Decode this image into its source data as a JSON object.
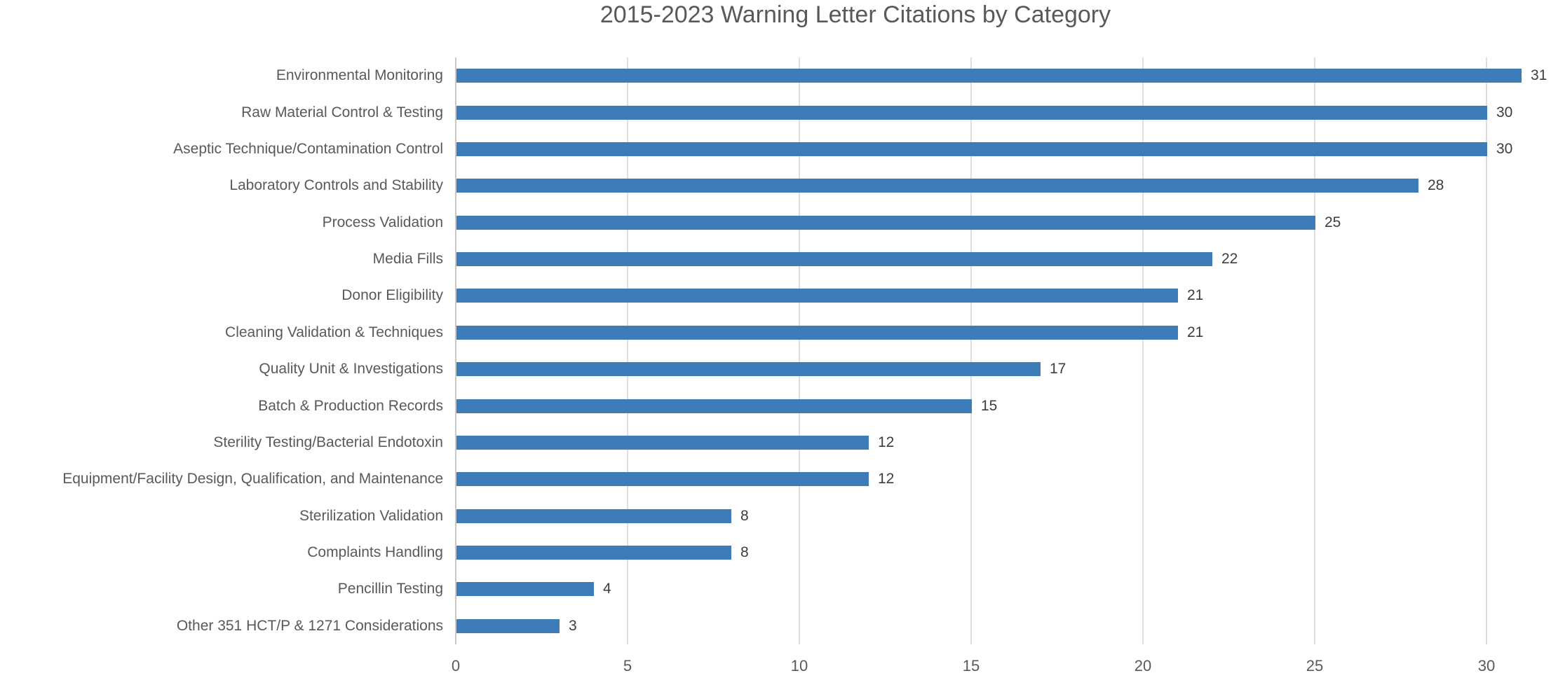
{
  "chart_data": {
    "type": "bar",
    "orientation": "horizontal",
    "title": "2015-2023 Warning Letter Citations by Category",
    "xlabel": "",
    "ylabel": "",
    "categories": [
      "Environmental Monitoring",
      "Raw Material Control & Testing",
      "Aseptic Technique/Contamination Control",
      "Laboratory Controls and Stability",
      "Process Validation",
      "Media Fills",
      "Donor Eligibility",
      "Cleaning Validation & Techniques",
      "Quality Unit & Investigations",
      "Batch & Production Records",
      "Sterility Testing/Bacterial Endotoxin",
      "Equipment/Facility Design, Qualification, and Maintenance",
      "Sterilization Validation",
      "Complaints Handling",
      "Pencillin Testing",
      "Other 351 HCT/P & 1271 Considerations"
    ],
    "values": [
      31,
      30,
      30,
      28,
      25,
      22,
      21,
      21,
      17,
      15,
      12,
      12,
      8,
      8,
      4,
      3
    ],
    "data_labels": [
      31,
      30,
      30,
      28,
      25,
      22,
      21,
      21,
      17,
      15,
      12,
      12,
      8,
      8,
      4,
      3
    ],
    "xticks": [
      0,
      5,
      10,
      15,
      20,
      25,
      30
    ],
    "xlim": [
      0,
      32
    ],
    "grid": "vertical-only",
    "legend": "none",
    "colors": {
      "bar": "#3d7cb8",
      "gridline": "#dedede",
      "axis_line": "#c9c9c9",
      "title_text": "#595959",
      "category_text": "#595959",
      "tick_text": "#595959",
      "value_text": "#3d3d3d",
      "background": "#ffffff"
    }
  }
}
